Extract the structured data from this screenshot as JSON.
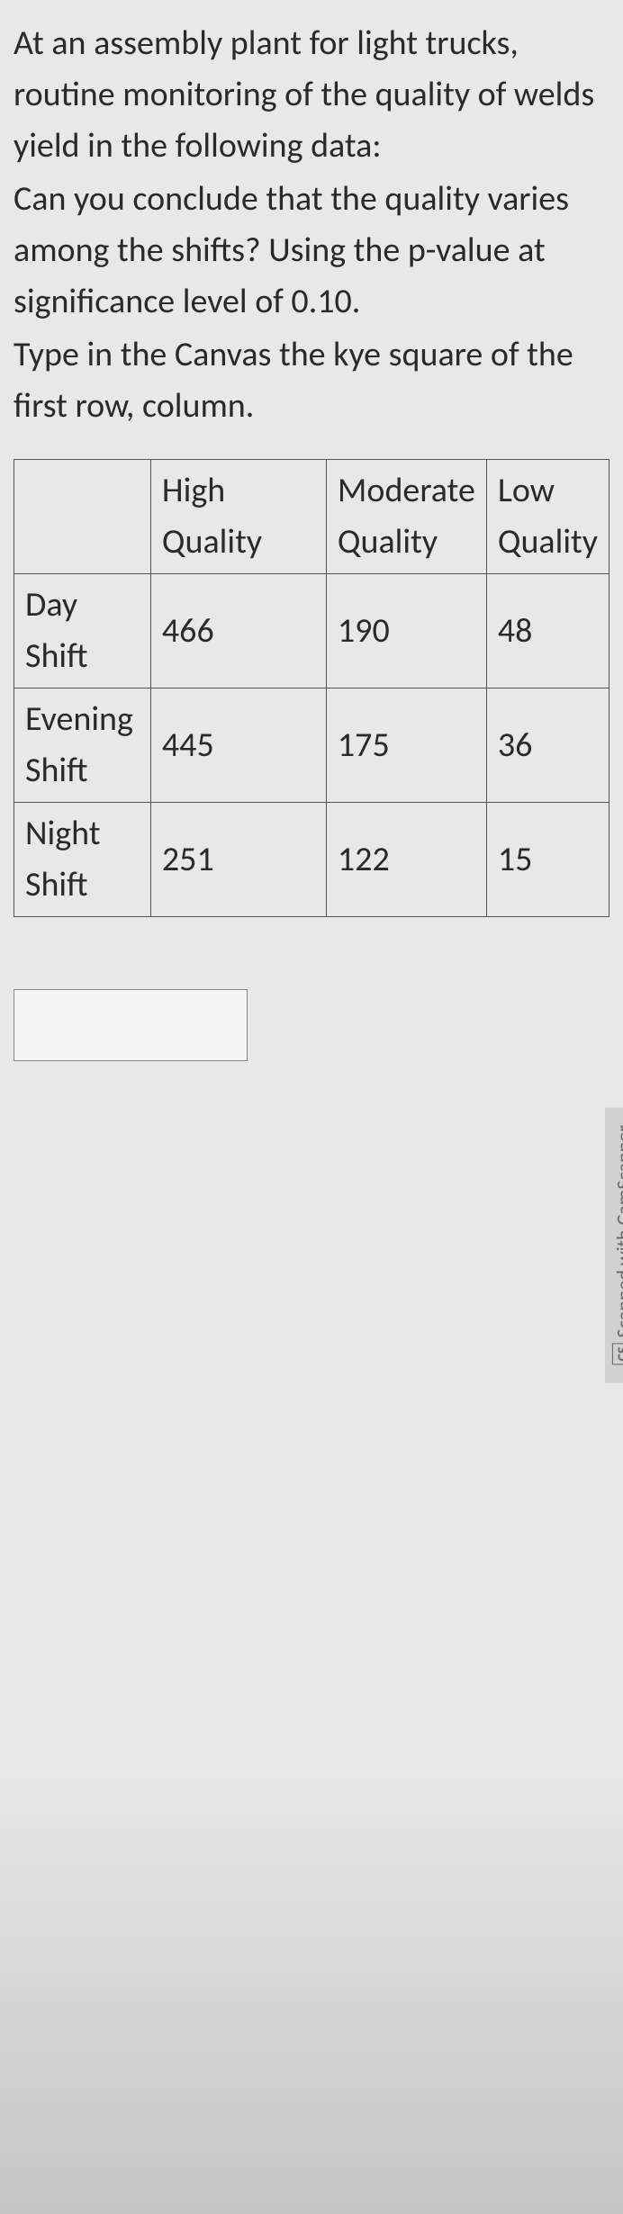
{
  "question": {
    "line1": "At an assembly plant for light trucks, routine monitoring of the quality of welds yield in the following data:",
    "line2": "Can you conclude that the quality varies among the shifts? Using the p-value at significance level of 0.10.",
    "line3": "Type in the Canvas the kye square of the first row, column."
  },
  "table": {
    "headers": {
      "blank": "",
      "col1": "High Quality",
      "col2": "Moderate Quality",
      "col3": "Low Quality"
    },
    "rows": [
      {
        "label": "Day Shift",
        "high": "466",
        "moderate": "190",
        "low": "48"
      },
      {
        "label": "Evening Shift",
        "high": "445",
        "moderate": "175",
        "low": "36"
      },
      {
        "label": "Night Shift",
        "high": "251",
        "moderate": "122",
        "low": "15"
      }
    ]
  },
  "watermark": {
    "badge": "CS",
    "text": "Scanned with CamScanner"
  }
}
